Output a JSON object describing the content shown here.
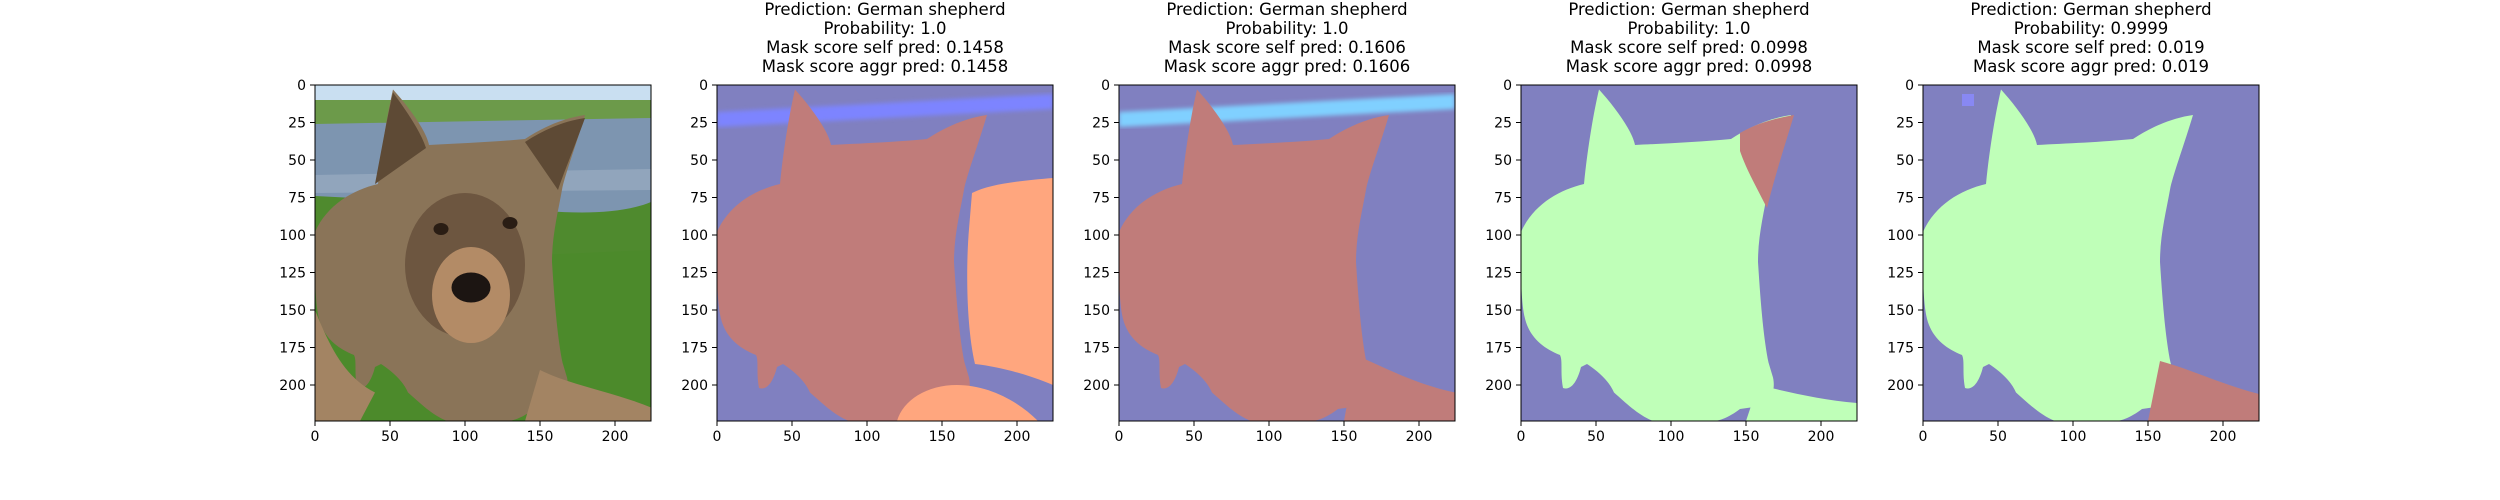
{
  "chart_data": [
    {
      "type": "image",
      "title_lines": [],
      "content": "photo",
      "xlim": [
        0,
        224
      ],
      "ylim": [
        224,
        0
      ],
      "xticks": [
        0,
        50,
        100,
        150,
        200
      ],
      "yticks": [
        0,
        25,
        50,
        75,
        100,
        125,
        150,
        175,
        200
      ]
    },
    {
      "type": "heatmap",
      "title_lines": [
        "Prediction: German shepherd",
        "Probability: 1.0",
        "Mask score self pred: 0.1458",
        "Mask score aggr pred: 0.1458"
      ],
      "prediction": "German shepherd",
      "probability": "1.0",
      "mask_score_self_pred": "0.1458",
      "mask_score_aggr_pred": "0.1458",
      "background_color": "#8080c0",
      "primary_color": "#c07c7a",
      "secondary_color": "#ffa67e",
      "strip_color": "#7d84ff",
      "variant": "mask_a",
      "xlim": [
        0,
        224
      ],
      "ylim": [
        224,
        0
      ],
      "xticks": [
        0,
        50,
        100,
        150,
        200
      ],
      "yticks": [
        0,
        25,
        50,
        75,
        100,
        125,
        150,
        175,
        200
      ]
    },
    {
      "type": "heatmap",
      "title_lines": [
        "Prediction: German shepherd",
        "Probability: 1.0",
        "Mask score self pred: 0.1606",
        "Mask score aggr pred: 0.1606"
      ],
      "prediction": "German shepherd",
      "probability": "1.0",
      "mask_score_self_pred": "0.1606",
      "mask_score_aggr_pred": "0.1606",
      "background_color": "#8080c0",
      "primary_color": "#c07c7a",
      "strip_color": "#80d0ff",
      "variant": "mask_b",
      "xlim": [
        0,
        224
      ],
      "ylim": [
        224,
        0
      ],
      "xticks": [
        0,
        50,
        100,
        150,
        200
      ],
      "yticks": [
        0,
        25,
        50,
        75,
        100,
        125,
        150,
        175,
        200
      ]
    },
    {
      "type": "heatmap",
      "title_lines": [
        "Prediction: German shepherd",
        "Probability: 1.0",
        "Mask score self pred: 0.0998",
        "Mask score aggr pred: 0.0998"
      ],
      "prediction": "German shepherd",
      "probability": "1.0",
      "mask_score_self_pred": "0.0998",
      "mask_score_aggr_pred": "0.0998",
      "background_color": "#8080c0",
      "primary_color": "#bfffb8",
      "accent_color": "#c07c7a",
      "variant": "mask_c",
      "xlim": [
        0,
        224
      ],
      "ylim": [
        224,
        0
      ],
      "xticks": [
        0,
        50,
        100,
        150,
        200
      ],
      "yticks": [
        0,
        25,
        50,
        75,
        100,
        125,
        150,
        175,
        200
      ]
    },
    {
      "type": "heatmap",
      "title_lines": [
        "Prediction: German shepherd",
        "Probability: 0.9999",
        "Mask score self pred: 0.019",
        "Mask score aggr pred: 0.019"
      ],
      "prediction": "German shepherd",
      "probability": "0.9999",
      "mask_score_self_pred": "0.019",
      "mask_score_aggr_pred": "0.019",
      "background_color": "#8080c0",
      "primary_color": "#bfffb8",
      "accent_color": "#c07c7a",
      "variant": "mask_d",
      "xlim": [
        0,
        224
      ],
      "ylim": [
        224,
        0
      ],
      "xticks": [
        0,
        50,
        100,
        150,
        200
      ],
      "yticks": [
        0,
        25,
        50,
        75,
        100,
        125,
        150,
        175,
        200
      ]
    }
  ]
}
